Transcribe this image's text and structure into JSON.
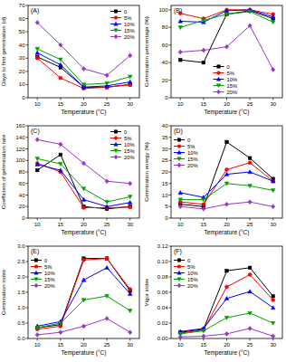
{
  "chart_data": [
    {
      "type": "line",
      "title": "(A)",
      "x_label": "Temperature (°C)",
      "y_label": "Days to first germination (d)",
      "x": [
        10,
        15,
        20,
        25,
        30
      ],
      "xlim": [
        8,
        32
      ],
      "xticks": [
        10,
        15,
        20,
        25,
        30
      ],
      "ylim": [
        0,
        70
      ],
      "yticks": [
        0,
        10,
        20,
        30,
        40,
        50,
        60,
        70
      ],
      "grid": false,
      "legend": "upper right",
      "series": [
        {
          "name": "0",
          "color": "#000000",
          "marker": "square",
          "values": [
            31,
            23,
            8,
            8,
            10
          ]
        },
        {
          "name": "5%",
          "color": "#ff0000",
          "marker": "circle",
          "values": [
            30,
            15,
            7,
            8,
            10
          ]
        },
        {
          "name": "10%",
          "color": "#0000ff",
          "marker": "triangle-up",
          "values": [
            34,
            25,
            8,
            9,
            12
          ]
        },
        {
          "name": "15%",
          "color": "#00a000",
          "marker": "triangle-down",
          "values": [
            37,
            29,
            10,
            11,
            16
          ]
        },
        {
          "name": "20%",
          "color": "#9933cc",
          "marker": "diamond",
          "values": [
            57,
            40,
            22,
            17,
            32
          ]
        }
      ]
    },
    {
      "type": "line",
      "title": "(B)",
      "x_label": "Temperature (°C)",
      "y_label": "Germination percentage (%)",
      "x": [
        10,
        15,
        20,
        25,
        30
      ],
      "xlim": [
        8,
        32
      ],
      "xticks": [
        10,
        15,
        20,
        25,
        30
      ],
      "ylim": [
        0,
        105
      ],
      "yticks": [
        0,
        20,
        40,
        60,
        80,
        100
      ],
      "grid": false,
      "legend": "lower center",
      "series": [
        {
          "name": "0",
          "color": "#000000",
          "marker": "square",
          "values": [
            43,
            40,
            95,
            99,
            90
          ]
        },
        {
          "name": "5%",
          "color": "#ff0000",
          "marker": "circle",
          "values": [
            96,
            90,
            100,
            100,
            95
          ]
        },
        {
          "name": "10%",
          "color": "#0000ff",
          "marker": "triangle-up",
          "values": [
            87,
            86,
            99,
            100,
            92
          ]
        },
        {
          "name": "15%",
          "color": "#00a000",
          "marker": "triangle-down",
          "values": [
            80,
            88,
            95,
            98,
            86
          ]
        },
        {
          "name": "20%",
          "color": "#9933cc",
          "marker": "diamond",
          "values": [
            52,
            54,
            58,
            82,
            32
          ]
        }
      ]
    },
    {
      "type": "line",
      "title": "(C)",
      "x_label": "Temperature (°C)",
      "y_label": "Coefficient of germination rate",
      "x": [
        10,
        15,
        20,
        25,
        30
      ],
      "xlim": [
        8,
        32
      ],
      "xticks": [
        10,
        15,
        20,
        25,
        30
      ],
      "ylim": [
        0,
        160
      ],
      "yticks": [
        0,
        20,
        40,
        60,
        80,
        100,
        120,
        140,
        160
      ],
      "grid": false,
      "legend": "upper right",
      "series": [
        {
          "name": "0",
          "color": "#000000",
          "marker": "square",
          "values": [
            83,
            110,
            20,
            16,
            20
          ]
        },
        {
          "name": "5%",
          "color": "#ff0000",
          "marker": "circle",
          "values": [
            95,
            80,
            18,
            18,
            19
          ]
        },
        {
          "name": "10%",
          "color": "#0000ff",
          "marker": "triangle-up",
          "values": [
            93,
            83,
            32,
            20,
            27
          ]
        },
        {
          "name": "15%",
          "color": "#00a000",
          "marker": "triangle-down",
          "values": [
            103,
            94,
            51,
            28,
            37
          ]
        },
        {
          "name": "20%",
          "color": "#9933cc",
          "marker": "diamond",
          "values": [
            136,
            128,
            95,
            64,
            60
          ]
        }
      ]
    },
    {
      "type": "line",
      "title": "(D)",
      "x_label": "Temperature (°C)",
      "y_label": "Germination energy (%)",
      "x": [
        10,
        15,
        20,
        25,
        30
      ],
      "xlim": [
        8,
        32
      ],
      "xticks": [
        10,
        15,
        20,
        25,
        30
      ],
      "ylim": [
        0,
        40
      ],
      "yticks": [
        0,
        5,
        10,
        15,
        20,
        25,
        30,
        35,
        40
      ],
      "grid": false,
      "legend": "upper left",
      "series": [
        {
          "name": "0",
          "color": "#000000",
          "marker": "square",
          "values": [
            6,
            5,
            33,
            26,
            17
          ]
        },
        {
          "name": "5%",
          "color": "#ff0000",
          "marker": "circle",
          "values": [
            7,
            6,
            21,
            24,
            16
          ]
        },
        {
          "name": "10%",
          "color": "#0000ff",
          "marker": "triangle-up",
          "values": [
            11,
            9,
            19,
            20,
            16
          ]
        },
        {
          "name": "15%",
          "color": "#00a000",
          "marker": "triangle-down",
          "values": [
            8,
            8,
            15,
            14,
            12
          ]
        },
        {
          "name": "20%",
          "color": "#9933cc",
          "marker": "diamond",
          "values": [
            5,
            4,
            6,
            7,
            5
          ]
        }
      ]
    },
    {
      "type": "line",
      "title": "(E)",
      "x_label": "Temperature (°C)",
      "y_label": "Germination index",
      "x": [
        10,
        15,
        20,
        25,
        30
      ],
      "xlim": [
        8,
        32
      ],
      "xticks": [
        10,
        15,
        20,
        25,
        30
      ],
      "ylim": [
        0,
        3
      ],
      "yticks": [
        {
          "value": 0,
          "label": "0.0"
        },
        {
          "value": 0.5,
          "label": "0.5"
        },
        {
          "value": 1,
          "label": "1.0"
        },
        {
          "value": 1.5,
          "label": "1.5"
        },
        {
          "value": 2,
          "label": "2.0"
        },
        {
          "value": 2.5,
          "label": "2.5"
        },
        {
          "value": 3,
          "label": "3.0"
        }
      ],
      "grid": false,
      "legend": "upper left",
      "series": [
        {
          "name": "0",
          "color": "#000000",
          "marker": "square",
          "values": [
            0.35,
            0.45,
            2.6,
            2.6,
            1.55
          ]
        },
        {
          "name": "5%",
          "color": "#ff0000",
          "marker": "circle",
          "values": [
            0.3,
            0.4,
            2.55,
            2.6,
            1.6
          ]
        },
        {
          "name": "10%",
          "color": "#0000ff",
          "marker": "triangle-up",
          "values": [
            0.4,
            0.55,
            1.9,
            2.3,
            1.45
          ]
        },
        {
          "name": "15%",
          "color": "#00a000",
          "marker": "triangle-down",
          "values": [
            0.35,
            0.5,
            1.25,
            1.38,
            0.9
          ]
        },
        {
          "name": "20%",
          "color": "#9933cc",
          "marker": "diamond",
          "values": [
            0.12,
            0.2,
            0.4,
            0.65,
            0.2
          ]
        }
      ]
    },
    {
      "type": "line",
      "title": "(F)",
      "x_label": "Temperature (°C)",
      "y_label": "Vigor index",
      "x": [
        10,
        15,
        20,
        25,
        30
      ],
      "xlim": [
        8,
        32
      ],
      "xticks": [
        10,
        15,
        20,
        25,
        30
      ],
      "ylim": [
        0,
        0.12
      ],
      "yticks": [
        {
          "value": 0,
          "label": "0.00"
        },
        {
          "value": 0.02,
          "label": "0.02"
        },
        {
          "value": 0.04,
          "label": "0.04"
        },
        {
          "value": 0.06,
          "label": "0.06"
        },
        {
          "value": 0.08,
          "label": "0.08"
        },
        {
          "value": 0.1,
          "label": "0.10"
        },
        {
          "value": 0.12,
          "label": "0.12"
        }
      ],
      "grid": false,
      "legend": "upper left",
      "series": [
        {
          "name": "0",
          "color": "#000000",
          "marker": "square",
          "values": [
            0.008,
            0.012,
            0.088,
            0.092,
            0.055
          ]
        },
        {
          "name": "5%",
          "color": "#ff0000",
          "marker": "circle",
          "values": [
            0.007,
            0.011,
            0.067,
            0.083,
            0.05
          ]
        },
        {
          "name": "10%",
          "color": "#0000ff",
          "marker": "triangle-up",
          "values": [
            0.009,
            0.013,
            0.052,
            0.061,
            0.04
          ]
        },
        {
          "name": "15%",
          "color": "#00a000",
          "marker": "triangle-down",
          "values": [
            0.006,
            0.01,
            0.027,
            0.033,
            0.02
          ]
        },
        {
          "name": "20%",
          "color": "#9933cc",
          "marker": "diamond",
          "values": [
            0.002,
            0.003,
            0.006,
            0.013,
            0.003
          ]
        }
      ]
    }
  ]
}
